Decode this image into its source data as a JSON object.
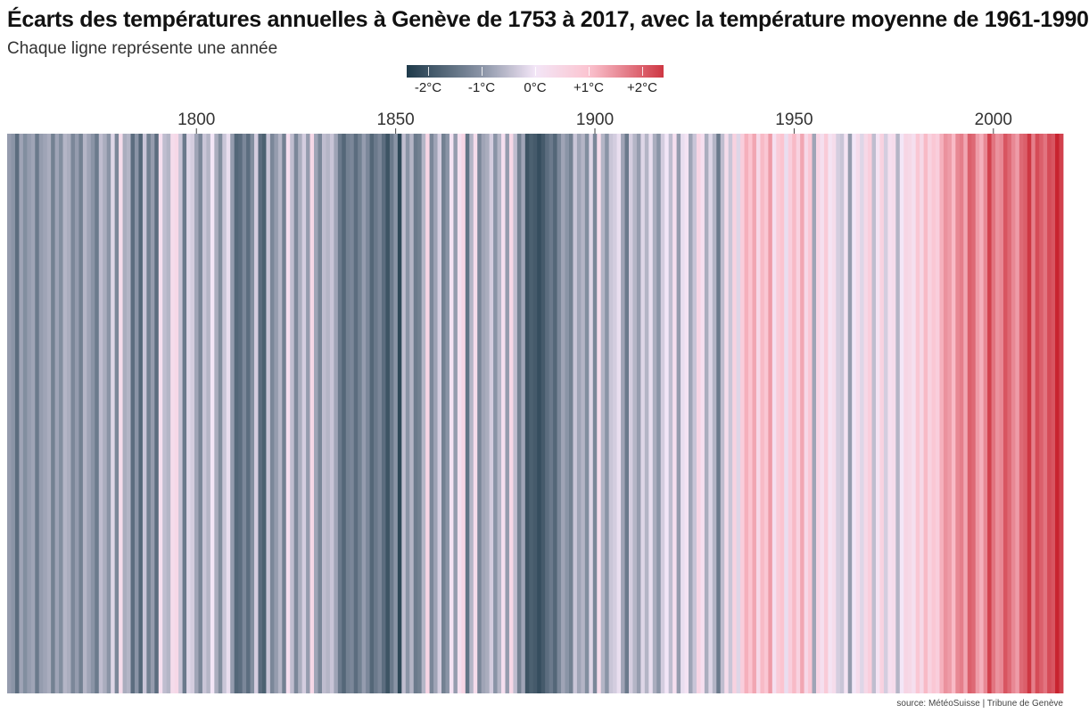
{
  "title": "Écarts des températures annuelles à Genève de 1753 à 2017, avec la température moyenne de 1961-1990",
  "subtitle": "Chaque ligne représente une année",
  "source": "source: MétéoSuisse | Tribune de Genève",
  "colors": {
    "cold_extreme": "#1e3a4a",
    "cold_mid": "#8a94a6",
    "neutral": "#f3e6f7",
    "warm_light": "#fbc4d0",
    "warm_extreme": "#c8232f"
  },
  "legend": {
    "min": -2.4,
    "max": 2.4,
    "ticks": [
      {
        "value": -2,
        "label": "-2°C"
      },
      {
        "value": -1,
        "label": "-1°C"
      },
      {
        "value": 0,
        "label": "0°C"
      },
      {
        "value": 1,
        "label": "+1°C"
      },
      {
        "value": 2,
        "label": "+2°C"
      }
    ]
  },
  "chart_data": {
    "type": "heatmap",
    "title": "Écarts des températures annuelles à Genève de 1753 à 2017, avec la température moyenne de 1961-1990",
    "subtitle": "Chaque ligne représente une année",
    "x_ticks": [
      1800,
      1850,
      1900,
      1950,
      2000
    ],
    "value_unit": "°C",
    "start_year": 1753,
    "end_year": 2017,
    "anomalies": [
      -0.9,
      -1.0,
      -1.6,
      -0.8,
      -1.1,
      -0.9,
      -0.8,
      -1.4,
      -0.9,
      -0.8,
      -0.7,
      -1.3,
      -0.8,
      -1.1,
      -0.6,
      -0.7,
      -1.2,
      -0.9,
      -1.3,
      -0.6,
      -0.8,
      -1.0,
      -1.4,
      -0.5,
      -0.7,
      -1.0,
      -0.2,
      -1.2,
      0.3,
      -0.7,
      -0.6,
      -1.6,
      -1.0,
      -1.7,
      -0.4,
      -1.3,
      -0.9,
      -1.6,
      0.2,
      -0.5,
      -0.6,
      0.3,
      0.4,
      -0.4,
      -1.4,
      -0.2,
      -0.3,
      -0.8,
      -1.2,
      -0.4,
      -0.6,
      0.0,
      -0.7,
      -1.1,
      -0.4,
      -0.1,
      -0.9,
      -1.7,
      -1.6,
      -1.2,
      -1.6,
      -1.1,
      -0.3,
      -1.6,
      -1.8,
      -0.4,
      -1.2,
      -0.9,
      -0.6,
      -1.3,
      0.2,
      -0.5,
      -1.2,
      -0.7,
      -0.3,
      -0.9,
      0.4,
      -0.8,
      -1.2,
      -0.5,
      -0.6,
      -0.4,
      -0.8,
      -1.4,
      -1.7,
      -1.3,
      -1.2,
      -1.6,
      -1.3,
      -0.9,
      -1.2,
      -1.7,
      -1.4,
      -1.2,
      -1.6,
      -2.0,
      -1.4,
      -1.0,
      -2.2,
      -0.5,
      -1.0,
      -0.6,
      -1.4,
      -1.3,
      -0.6,
      0.5,
      -1.2,
      -0.8,
      -0.3,
      -1.3,
      -1.0,
      0.1,
      -0.9,
      0.2,
      0.5,
      -1.5,
      -0.6,
      0.3,
      -1.2,
      -0.8,
      -0.7,
      -0.3,
      -1.0,
      -0.6,
      0.2,
      -0.9,
      0.4,
      -0.5,
      -1.3,
      -0.8,
      -2.0,
      -1.8,
      -1.9,
      -2.1,
      -1.9,
      -1.6,
      -1.4,
      -1.7,
      -1.2,
      -0.8,
      -1.0,
      -1.3,
      -0.4,
      -0.8,
      -0.6,
      -1.1,
      -0.2,
      -1.2,
      0.3,
      -0.6,
      -1.0,
      -0.4,
      -0.3,
      -0.1,
      -0.8,
      -1.4,
      -0.3,
      -0.6,
      -0.9,
      -0.2,
      -0.6,
      -0.1,
      -0.7,
      -1.0,
      -0.3,
      0.0,
      -0.5,
      0.2,
      -0.9,
      -0.1,
      0.1,
      -0.8,
      -0.4,
      0.5,
      0.2,
      -0.7,
      -0.2,
      -0.6,
      -1.4,
      -0.5,
      0.3,
      -0.4,
      0.6,
      -0.2,
      0.7,
      1.2,
      1.0,
      1.3,
      0.4,
      1.1,
      0.9,
      1.4,
      0.2,
      0.8,
      1.0,
      -0.1,
      0.7,
      1.1,
      0.6,
      1.3,
      0.4,
      0.9,
      -0.8,
      0.5,
      0.2,
      0.8,
      0.1,
      0.3,
      -0.3,
      -0.4,
      0.1,
      -0.9,
      0.0,
      0.3,
      -0.2,
      0.4,
      0.7,
      -0.5,
      0.1,
      0.6,
      -0.3,
      0.2,
      0.3,
      -0.6,
      0.0,
      0.5,
      0.4,
      0.2,
      0.9,
      0.4,
      1.1,
      0.6,
      0.9,
      0.7,
      1.2,
      1.5,
      1.4,
      1.1,
      1.6,
      1.7,
      1.3,
      2.0,
      1.9,
      1.4,
      1.2,
      1.6,
      2.3,
      1.8,
      1.5,
      1.6,
      2.1,
      1.9,
      1.6,
      1.4,
      1.9,
      2.0,
      2.4,
      1.7,
      2.2,
      2.0,
      1.8,
      2.2,
      2.1,
      2.6,
      2.3
    ]
  }
}
